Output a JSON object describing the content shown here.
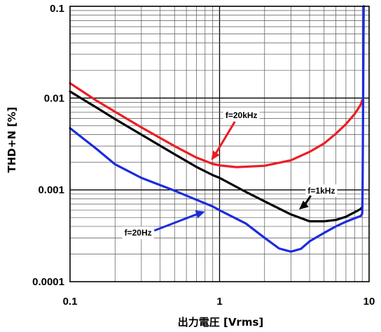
{
  "chart_data": {
    "type": "line",
    "title": "",
    "xlabel": "出力電圧 [Vrms]",
    "ylabel": "THD+N [%]",
    "x_scale": "log",
    "y_scale": "log",
    "xlim": [
      0.1,
      10
    ],
    "ylim": [
      0.0001,
      0.1
    ],
    "grid": true,
    "x_ticks": [
      {
        "value": 0.1,
        "label": "0.1"
      },
      {
        "value": 1,
        "label": "1"
      },
      {
        "value": 10,
        "label": "10"
      }
    ],
    "y_ticks": [
      {
        "value": 0.0001,
        "label": "0.0001"
      },
      {
        "value": 0.001,
        "label": "0.001"
      },
      {
        "value": 0.01,
        "label": "0.01"
      },
      {
        "value": 0.1,
        "label": "0.1"
      }
    ],
    "series": [
      {
        "name": "f=20kHz",
        "color": "#ee1c24",
        "points": [
          [
            0.1,
            0.0145
          ],
          [
            0.15,
            0.0094
          ],
          [
            0.2,
            0.0071
          ],
          [
            0.3,
            0.0048
          ],
          [
            0.5,
            0.003
          ],
          [
            0.7,
            0.00225
          ],
          [
            0.9,
            0.00192
          ],
          [
            1.0,
            0.00185
          ],
          [
            1.3,
            0.00177
          ],
          [
            2.0,
            0.00183
          ],
          [
            3.0,
            0.0021
          ],
          [
            4.0,
            0.0026
          ],
          [
            5.0,
            0.0032
          ],
          [
            6.0,
            0.0041
          ],
          [
            7.0,
            0.0052
          ],
          [
            8.0,
            0.0067
          ],
          [
            8.8,
            0.0085
          ],
          [
            9.0,
            0.0095
          ]
        ],
        "annotation": {
          "text": "f=20kHz",
          "x": 1.4,
          "y": 0.0065,
          "arrow_to": [
            0.88,
            0.0021
          ]
        }
      },
      {
        "name": "f=1kHz",
        "color": "#000000",
        "points": [
          [
            0.1,
            0.0118
          ],
          [
            0.15,
            0.0079
          ],
          [
            0.2,
            0.0059
          ],
          [
            0.3,
            0.004
          ],
          [
            0.5,
            0.00245
          ],
          [
            0.7,
            0.00178
          ],
          [
            0.9,
            0.00145
          ],
          [
            1.0,
            0.00135
          ],
          [
            1.5,
            0.00095
          ],
          [
            2.0,
            0.00075
          ],
          [
            3.0,
            0.00054
          ],
          [
            4.0,
            0.000455
          ],
          [
            5.0,
            0.000455
          ],
          [
            6.0,
            0.00047
          ],
          [
            7.0,
            0.00051
          ],
          [
            8.0,
            0.00057
          ],
          [
            8.8,
            0.00062
          ],
          [
            9.0,
            0.00065
          ]
        ],
        "annotation": {
          "text": "f=1kHz",
          "x": 4.8,
          "y": 0.00098,
          "arrow_to": [
            3.4,
            0.00061
          ]
        }
      },
      {
        "name": "f=20Hz",
        "color": "#1c2bdd",
        "points": [
          [
            0.1,
            0.0047
          ],
          [
            0.15,
            0.0028
          ],
          [
            0.2,
            0.0019
          ],
          [
            0.3,
            0.00135
          ],
          [
            0.5,
            0.00098
          ],
          [
            0.7,
            0.00078
          ],
          [
            0.9,
            0.00066
          ],
          [
            1.0,
            0.0006
          ],
          [
            1.5,
            0.00043
          ],
          [
            2.0,
            0.0003
          ],
          [
            2.5,
            0.00023
          ],
          [
            3.0,
            0.000212
          ],
          [
            3.5,
            0.000228
          ],
          [
            4.0,
            0.000275
          ],
          [
            5.0,
            0.00034
          ],
          [
            6.0,
            0.0004
          ],
          [
            7.0,
            0.00045
          ],
          [
            8.0,
            0.00049
          ],
          [
            8.8,
            0.00052
          ],
          [
            9.0,
            0.00055
          ],
          [
            9.05,
            0.001
          ],
          [
            9.1,
            0.005
          ],
          [
            9.2,
            0.1
          ]
        ],
        "annotation": {
          "text": "f=20Hz",
          "x": 0.285,
          "y": 0.00034,
          "arrow_to": [
            0.8,
            0.00058
          ]
        }
      }
    ]
  }
}
